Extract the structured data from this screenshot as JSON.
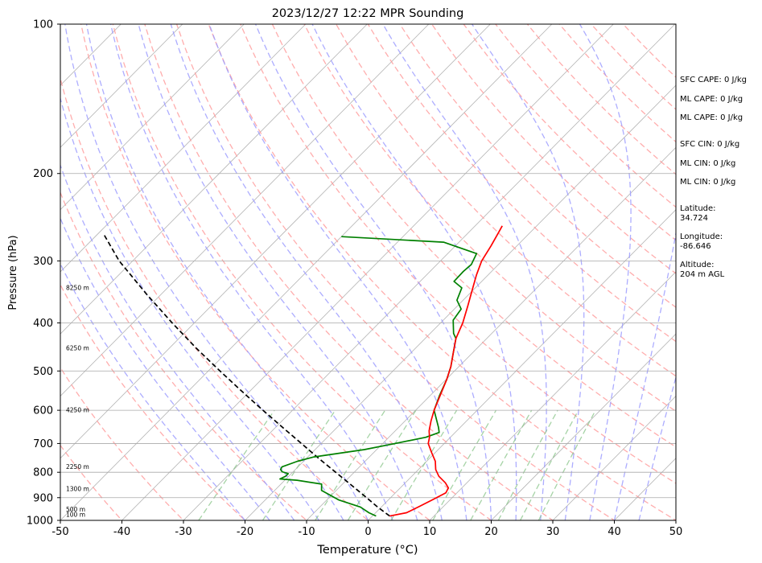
{
  "chart_data": {
    "type": "line",
    "title": "2023/12/27 12:22 MPR Sounding",
    "xlabel": "Temperature (°C)",
    "ylabel": "Pressure (hPa)",
    "xlim": [
      -50,
      50
    ],
    "ylim": [
      1000,
      100
    ],
    "y_scale": "log",
    "x_ticks": [
      -50,
      -40,
      -30,
      -20,
      -10,
      0,
      10,
      20,
      30,
      40,
      50
    ],
    "y_ticks": [
      1000,
      900,
      800,
      700,
      600,
      500,
      400,
      300,
      200,
      100
    ],
    "grid": true,
    "series": [
      {
        "kind": "temperature",
        "color": "#ff0000",
        "points": [
          {
            "p": 980,
            "t": 2.8
          },
          {
            "p": 965,
            "t": 5.0
          },
          {
            "p": 940,
            "t": 6.0
          },
          {
            "p": 910,
            "t": 7.1
          },
          {
            "p": 880,
            "t": 8.2
          },
          {
            "p": 860,
            "t": 7.8
          },
          {
            "p": 840,
            "t": 6.5
          },
          {
            "p": 815,
            "t": 4.4
          },
          {
            "p": 790,
            "t": 2.8
          },
          {
            "p": 760,
            "t": 1.4
          },
          {
            "p": 730,
            "t": -0.6
          },
          {
            "p": 700,
            "t": -2.6
          },
          {
            "p": 680,
            "t": -3.4
          },
          {
            "p": 660,
            "t": -4.5
          },
          {
            "p": 630,
            "t": -5.8
          },
          {
            "p": 600,
            "t": -7.0
          },
          {
            "p": 560,
            "t": -8.4
          },
          {
            "p": 520,
            "t": -9.9
          },
          {
            "p": 490,
            "t": -11.3
          },
          {
            "p": 460,
            "t": -13.1
          },
          {
            "p": 430,
            "t": -15.0
          },
          {
            "p": 400,
            "t": -16.4
          },
          {
            "p": 370,
            "t": -18.3
          },
          {
            "p": 340,
            "t": -20.4
          },
          {
            "p": 320,
            "t": -21.9
          },
          {
            "p": 300,
            "t": -23.3
          },
          {
            "p": 280,
            "t": -24.2
          },
          {
            "p": 265,
            "t": -25.0
          },
          {
            "p": 255,
            "t": -25.6
          }
        ]
      },
      {
        "kind": "dewpoint",
        "color": "#008000",
        "points": [
          {
            "p": 980,
            "t": 0.6
          },
          {
            "p": 965,
            "t": -1.1
          },
          {
            "p": 940,
            "t": -3.4
          },
          {
            "p": 910,
            "t": -8.0
          },
          {
            "p": 870,
            "t": -12.4
          },
          {
            "p": 845,
            "t": -13.4
          },
          {
            "p": 830,
            "t": -18.0
          },
          {
            "p": 825,
            "t": -21.0
          },
          {
            "p": 815,
            "t": -20.5
          },
          {
            "p": 805,
            "t": -20.5
          },
          {
            "p": 798,
            "t": -21.8
          },
          {
            "p": 790,
            "t": -22.4
          },
          {
            "p": 780,
            "t": -22.6
          },
          {
            "p": 760,
            "t": -21.0
          },
          {
            "p": 745,
            "t": -19.0
          },
          {
            "p": 720,
            "t": -12.0
          },
          {
            "p": 700,
            "t": -8.0
          },
          {
            "p": 680,
            "t": -4.0
          },
          {
            "p": 665,
            "t": -2.6
          },
          {
            "p": 650,
            "t": -3.5
          },
          {
            "p": 600,
            "t": -7.0
          },
          {
            "p": 560,
            "t": -8.5
          },
          {
            "p": 520,
            "t": -9.9
          },
          {
            "p": 490,
            "t": -11.3
          },
          {
            "p": 460,
            "t": -13.1
          },
          {
            "p": 430,
            "t": -15.0
          },
          {
            "p": 420,
            "t": -16.2
          },
          {
            "p": 395,
            "t": -18.4
          },
          {
            "p": 375,
            "t": -18.9
          },
          {
            "p": 360,
            "t": -21.0
          },
          {
            "p": 340,
            "t": -22.2
          },
          {
            "p": 330,
            "t": -24.5
          },
          {
            "p": 315,
            "t": -24.6
          },
          {
            "p": 305,
            "t": -24.4
          },
          {
            "p": 290,
            "t": -25.3
          },
          {
            "p": 275,
            "t": -32.5
          },
          {
            "p": 268,
            "t": -50.0
          }
        ]
      },
      {
        "kind": "parcel",
        "color": "#000000",
        "dashed": true,
        "points": [
          {
            "p": 980,
            "t": 2.8
          },
          {
            "p": 940,
            "t": -0.6
          },
          {
            "p": 900,
            "t": -3.9
          },
          {
            "p": 850,
            "t": -8.3
          },
          {
            "p": 800,
            "t": -13.0
          },
          {
            "p": 750,
            "t": -18.0
          },
          {
            "p": 700,
            "t": -23.2
          },
          {
            "p": 650,
            "t": -28.8
          },
          {
            "p": 600,
            "t": -34.8
          },
          {
            "p": 550,
            "t": -41.2
          },
          {
            "p": 500,
            "t": -48.1
          },
          {
            "p": 450,
            "t": -55.6
          },
          {
            "p": 400,
            "t": -63.6
          },
          {
            "p": 350,
            "t": -72.4
          },
          {
            "p": 300,
            "t": -82.2
          },
          {
            "p": 265,
            "t": -89.0
          }
        ]
      }
    ],
    "height_labels": [
      {
        "p": 975,
        "text": "100 m"
      },
      {
        "p": 950,
        "text": "500 m"
      },
      {
        "p": 865,
        "text": "1300 m"
      },
      {
        "p": 780,
        "text": "2250 m"
      },
      {
        "p": 600,
        "text": "4250 m"
      },
      {
        "p": 450,
        "text": "6250 m"
      },
      {
        "p": 340,
        "text": "8250 m"
      }
    ],
    "indices": [
      {
        "label": "SFC CAPE: 0 J/kg"
      },
      {
        "label": "ML CAPE: 0 J/kg"
      },
      {
        "label": "ML CAPE: 0 J/kg"
      },
      {
        "label": "SFC CIN: 0 J/kg"
      },
      {
        "label": "ML CIN: 0 J/kg"
      },
      {
        "label": "ML CIN: 0 J/kg"
      }
    ],
    "location": {
      "latitude_label": "Latitude:",
      "latitude": "34.724",
      "longitude_label": "Longitude:",
      "longitude": "-86.646",
      "altitude_label": "Altitude:",
      "altitude": "204 m AGL"
    },
    "colors": {
      "isotherm": "#b3b3b3",
      "dry_adiabat": "#ff9999",
      "moist_adiabat": "#9999ff",
      "mixing_ratio": "#80c080",
      "grid": "#a9a9a9"
    }
  }
}
